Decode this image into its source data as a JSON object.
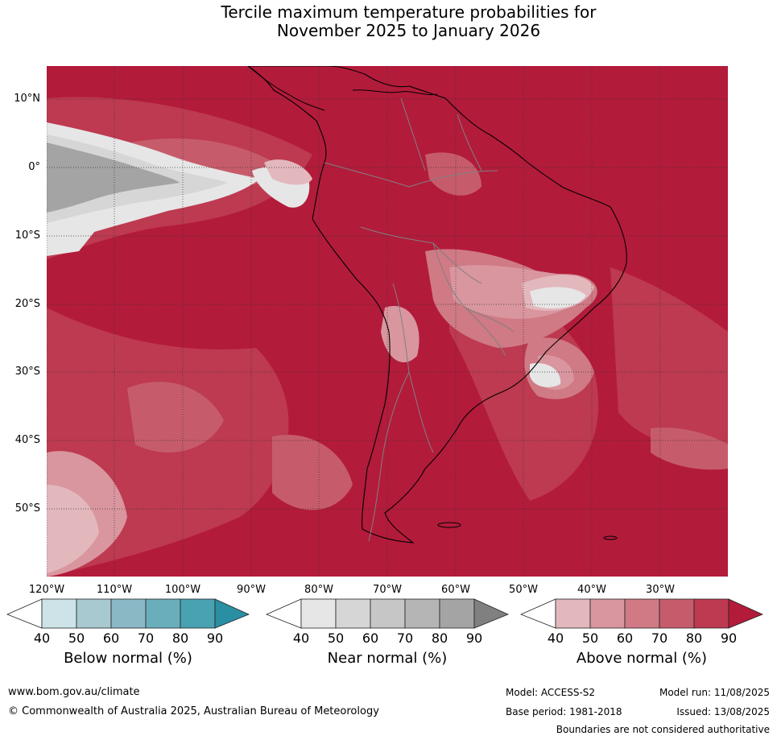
{
  "title": {
    "line1": "Tercile maximum temperature probabilities for",
    "line2": "November 2025 to January 2026"
  },
  "latitude_labels": [
    "10°N",
    "0°",
    "10°S",
    "20°S",
    "30°S",
    "40°S",
    "50°S"
  ],
  "longitude_labels": [
    "120°W",
    "110°W",
    "100°W",
    "90°W",
    "80°W",
    "70°W",
    "60°W",
    "50°W",
    "40°W",
    "30°W"
  ],
  "colorbars": [
    {
      "title": "Below normal (%)",
      "ticks": [
        "40",
        "50",
        "60",
        "70",
        "80",
        "90"
      ],
      "colors": [
        "#ffffff",
        "#cde3e8",
        "#a8c9d0",
        "#8bb8c5",
        "#6aaebb",
        "#49a2b2",
        "#2a8fa3"
      ]
    },
    {
      "title": "Near normal (%)",
      "ticks": [
        "40",
        "50",
        "60",
        "70",
        "80",
        "90"
      ],
      "colors": [
        "#ffffff",
        "#e6e6e6",
        "#d6d6d6",
        "#c6c6c6",
        "#b5b5b5",
        "#a4a4a4",
        "#808080"
      ]
    },
    {
      "title": "Above normal (%)",
      "ticks": [
        "40",
        "50",
        "60",
        "70",
        "80",
        "90"
      ],
      "colors": [
        "#ffffff",
        "#e2b8bd",
        "#d9969f",
        "#cf7a85",
        "#c65c6b",
        "#bd3a50",
        "#b31b3b"
      ]
    }
  ],
  "footer": {
    "website": "www.bom.gov.au/climate",
    "copyright": "© Commonwealth of Australia 2025, Australian Bureau of Meteorology",
    "model": "Model: ACCESS-S2",
    "base_period": "Base period: 1981-2018",
    "model_run": "Model run: 11/08/2025",
    "issued": "Issued: 13/08/2025",
    "disclaimer": "Boundaries are not considered authoritative"
  },
  "map_colors": {
    "above_90": "#b31b3b",
    "above_80": "#bd3a50",
    "above_70": "#c65c6b",
    "above_60": "#cf7a85",
    "above_50": "#d9969f",
    "above_40": "#e2b8bd",
    "near_40": "#e6e6e6",
    "near_50": "#d6d6d6",
    "near_80": "#a4a4a4",
    "coastline": "#000000",
    "borders": "#808080"
  }
}
